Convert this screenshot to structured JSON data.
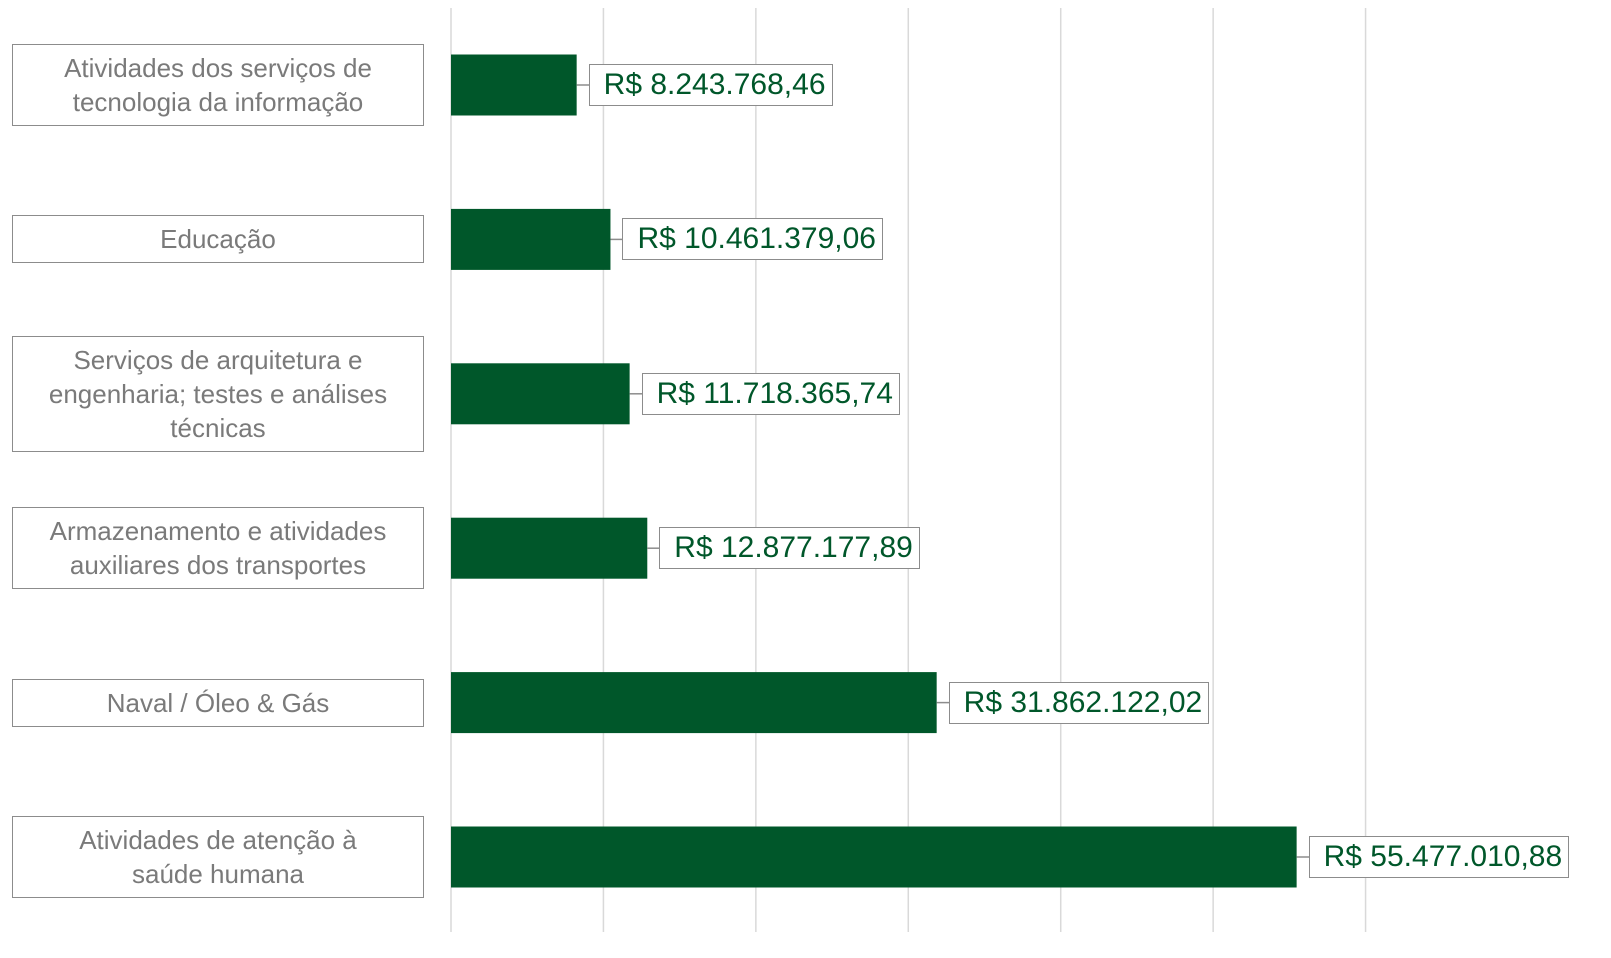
{
  "chart_data": {
    "type": "bar",
    "orientation": "horizontal",
    "categories": [
      "Atividades dos serviços de tecnologia da informação",
      "Educação",
      "Serviços de arquitetura e engenharia; testes e análises técnicas",
      "Armazenamento e atividades auxiliares dos transportes",
      "Naval / Óleo & Gás",
      "Atividades de atenção à saúde humana"
    ],
    "values": [
      8243768.46,
      10461379.06,
      11718365.74,
      12877177.89,
      31862122.02,
      55477010.88
    ],
    "value_labels": [
      "R$ 8.243.768,46",
      "R$ 10.461.379,06",
      "R$ 11.718.365,74",
      "R$ 12.877.177,89",
      "R$ 31.862.122,02",
      "R$ 55.477.010,88"
    ],
    "color": "#00572a",
    "xlim": [
      0,
      70000000
    ],
    "xticks": [
      0,
      10000000,
      20000000,
      30000000,
      40000000,
      50000000,
      60000000
    ],
    "grid": true
  }
}
